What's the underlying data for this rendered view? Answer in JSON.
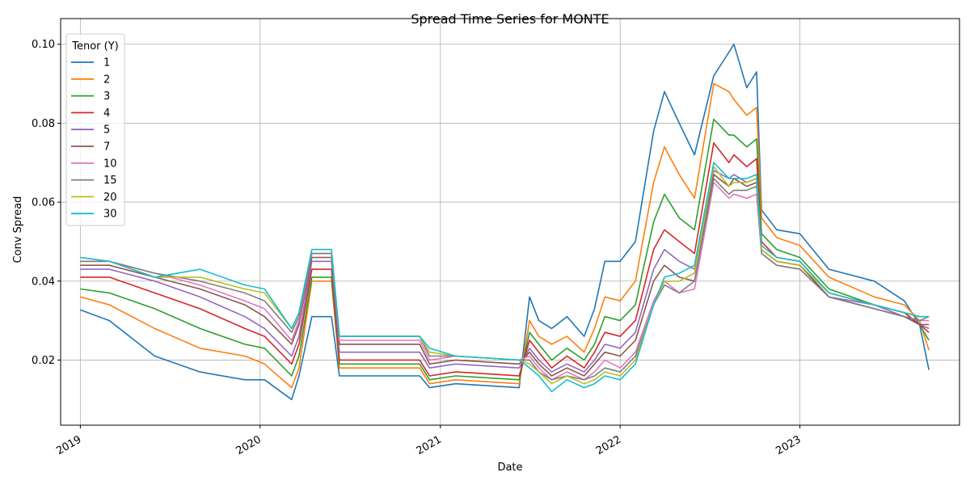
{
  "chart_data": {
    "type": "line",
    "title": "Spread Time Series for MONTE",
    "xlabel": "Date",
    "ylabel": "Conv Spread",
    "x_ticks": [
      "2019",
      "2020",
      "2021",
      "2022",
      "2023"
    ],
    "y_ticks": [
      "0.02",
      "0.04",
      "0.06",
      "0.08",
      "0.10"
    ],
    "xlim": [
      "2018-11-22",
      "2023-11-21"
    ],
    "ylim": [
      0.0035,
      0.1065
    ],
    "grid": true,
    "legend": {
      "title": "Tenor (Y)",
      "position": "top-left"
    },
    "series": [
      {
        "name": "1",
        "color": "#1f77b4",
        "x": [
          "2019-01-01",
          "2019-03-01",
          "2019-06-01",
          "2019-09-01",
          "2019-12-01",
          "2020-01-10",
          "2020-03-05",
          "2020-03-20",
          "2020-04-15",
          "2020-05-25",
          "2020-06-10",
          "2020-09-01",
          "2020-11-20",
          "2020-12-10",
          "2021-02-01",
          "2021-06-10",
          "2021-07-01",
          "2021-07-20",
          "2021-08-15",
          "2021-09-15",
          "2021-10-20",
          "2021-11-10",
          "2021-12-01",
          "2022-01-01",
          "2022-02-01",
          "2022-03-10",
          "2022-04-01",
          "2022-05-01",
          "2022-06-01",
          "2022-07-10",
          "2022-08-10",
          "2022-08-20",
          "2022-09-15",
          "2022-10-05",
          "2022-10-15",
          "2022-11-15",
          "2023-01-01",
          "2023-03-01",
          "2023-06-01",
          "2023-08-01",
          "2023-09-01",
          "2023-09-20"
        ],
        "y": [
          0.0327,
          0.03,
          0.021,
          0.017,
          0.015,
          0.015,
          0.01,
          0.016,
          0.031,
          0.031,
          0.016,
          0.016,
          0.016,
          0.013,
          0.014,
          0.013,
          0.036,
          0.03,
          0.028,
          0.031,
          0.026,
          0.033,
          0.045,
          0.045,
          0.05,
          0.078,
          0.088,
          0.08,
          0.072,
          0.092,
          0.098,
          0.1,
          0.089,
          0.093,
          0.058,
          0.053,
          0.052,
          0.043,
          0.04,
          0.035,
          0.029,
          0.0175
        ]
      },
      {
        "name": "2",
        "color": "#ff7f0e",
        "x": [
          "2019-01-01",
          "2019-03-01",
          "2019-06-01",
          "2019-09-01",
          "2019-12-01",
          "2020-01-10",
          "2020-03-05",
          "2020-03-20",
          "2020-04-15",
          "2020-05-25",
          "2020-06-10",
          "2020-09-01",
          "2020-11-20",
          "2020-12-10",
          "2021-02-01",
          "2021-06-10",
          "2021-07-01",
          "2021-07-20",
          "2021-08-15",
          "2021-09-15",
          "2021-10-20",
          "2021-11-10",
          "2021-12-01",
          "2022-01-01",
          "2022-02-01",
          "2022-03-10",
          "2022-04-01",
          "2022-05-01",
          "2022-06-01",
          "2022-07-10",
          "2022-08-10",
          "2022-08-20",
          "2022-09-15",
          "2022-10-05",
          "2022-10-15",
          "2022-11-15",
          "2023-01-01",
          "2023-03-01",
          "2023-06-01",
          "2023-08-01",
          "2023-09-01",
          "2023-09-20"
        ],
        "y": [
          0.036,
          0.034,
          0.028,
          0.023,
          0.021,
          0.019,
          0.013,
          0.018,
          0.04,
          0.04,
          0.018,
          0.018,
          0.018,
          0.014,
          0.015,
          0.014,
          0.03,
          0.026,
          0.024,
          0.026,
          0.022,
          0.028,
          0.036,
          0.035,
          0.04,
          0.065,
          0.074,
          0.067,
          0.061,
          0.09,
          0.088,
          0.086,
          0.082,
          0.084,
          0.056,
          0.051,
          0.049,
          0.041,
          0.036,
          0.034,
          0.03,
          0.0225
        ]
      },
      {
        "name": "3",
        "color": "#2ca02c",
        "x": [
          "2019-01-01",
          "2019-03-01",
          "2019-06-01",
          "2019-09-01",
          "2019-12-01",
          "2020-01-10",
          "2020-03-05",
          "2020-03-20",
          "2020-04-15",
          "2020-05-25",
          "2020-06-10",
          "2020-09-01",
          "2020-11-20",
          "2020-12-10",
          "2021-02-01",
          "2021-06-10",
          "2021-07-01",
          "2021-07-20",
          "2021-08-15",
          "2021-09-15",
          "2021-10-20",
          "2021-11-10",
          "2021-12-01",
          "2022-01-01",
          "2022-02-01",
          "2022-03-10",
          "2022-04-01",
          "2022-05-01",
          "2022-06-01",
          "2022-07-10",
          "2022-08-10",
          "2022-08-20",
          "2022-09-15",
          "2022-10-05",
          "2022-10-15",
          "2022-11-15",
          "2023-01-01",
          "2023-03-01",
          "2023-06-01",
          "2023-08-01",
          "2023-09-01",
          "2023-09-20"
        ],
        "y": [
          0.038,
          0.037,
          0.033,
          0.028,
          0.024,
          0.023,
          0.016,
          0.021,
          0.041,
          0.041,
          0.019,
          0.019,
          0.019,
          0.015,
          0.016,
          0.015,
          0.027,
          0.024,
          0.02,
          0.023,
          0.02,
          0.024,
          0.031,
          0.03,
          0.034,
          0.055,
          0.062,
          0.056,
          0.053,
          0.081,
          0.077,
          0.077,
          0.074,
          0.076,
          0.052,
          0.048,
          0.046,
          0.038,
          0.034,
          0.032,
          0.029,
          0.025
        ]
      },
      {
        "name": "4",
        "color": "#d62728",
        "x": [
          "2019-01-01",
          "2019-03-01",
          "2019-06-01",
          "2019-09-01",
          "2019-12-01",
          "2020-01-10",
          "2020-03-05",
          "2020-03-20",
          "2020-04-15",
          "2020-05-25",
          "2020-06-10",
          "2020-09-01",
          "2020-11-20",
          "2020-12-10",
          "2021-02-01",
          "2021-06-10",
          "2021-07-01",
          "2021-07-20",
          "2021-08-15",
          "2021-09-15",
          "2021-10-20",
          "2021-11-10",
          "2021-12-01",
          "2022-01-01",
          "2022-02-01",
          "2022-03-10",
          "2022-04-01",
          "2022-05-01",
          "2022-06-01",
          "2022-07-10",
          "2022-08-10",
          "2022-08-20",
          "2022-09-15",
          "2022-10-05",
          "2022-10-15",
          "2022-11-15",
          "2023-01-01",
          "2023-03-01",
          "2023-06-01",
          "2023-08-01",
          "2023-09-01",
          "2023-09-20"
        ],
        "y": [
          0.041,
          0.041,
          0.037,
          0.033,
          0.028,
          0.026,
          0.019,
          0.024,
          0.043,
          0.043,
          0.02,
          0.02,
          0.02,
          0.016,
          0.017,
          0.016,
          0.025,
          0.022,
          0.018,
          0.021,
          0.018,
          0.022,
          0.027,
          0.026,
          0.03,
          0.048,
          0.053,
          0.05,
          0.047,
          0.075,
          0.07,
          0.072,
          0.069,
          0.071,
          0.05,
          0.046,
          0.045,
          0.037,
          0.034,
          0.032,
          0.029,
          0.027
        ]
      },
      {
        "name": "5",
        "color": "#9467bd",
        "x": [
          "2019-01-01",
          "2019-03-01",
          "2019-06-01",
          "2019-09-01",
          "2019-12-01",
          "2020-01-10",
          "2020-03-05",
          "2020-03-20",
          "2020-04-15",
          "2020-05-25",
          "2020-06-10",
          "2020-09-01",
          "2020-11-20",
          "2020-12-10",
          "2021-02-01",
          "2021-06-10",
          "2021-07-01",
          "2021-07-20",
          "2021-08-15",
          "2021-09-15",
          "2021-10-20",
          "2021-11-10",
          "2021-12-01",
          "2022-01-01",
          "2022-02-01",
          "2022-03-10",
          "2022-04-01",
          "2022-05-01",
          "2022-06-01",
          "2022-07-10",
          "2022-08-10",
          "2022-08-20",
          "2022-09-15",
          "2022-10-05",
          "2022-10-15",
          "2022-11-15",
          "2023-01-01",
          "2023-03-01",
          "2023-06-01",
          "2023-08-01",
          "2023-09-01",
          "2023-09-20"
        ],
        "y": [
          0.043,
          0.043,
          0.04,
          0.036,
          0.031,
          0.028,
          0.021,
          0.026,
          0.045,
          0.045,
          0.022,
          0.022,
          0.022,
          0.018,
          0.019,
          0.018,
          0.023,
          0.02,
          0.017,
          0.019,
          0.017,
          0.02,
          0.024,
          0.023,
          0.027,
          0.043,
          0.048,
          0.045,
          0.043,
          0.068,
          0.066,
          0.067,
          0.065,
          0.066,
          0.048,
          0.045,
          0.044,
          0.036,
          0.034,
          0.031,
          0.029,
          0.028
        ]
      },
      {
        "name": "7",
        "color": "#8c564b",
        "x": [
          "2019-01-01",
          "2019-03-01",
          "2019-06-01",
          "2019-09-01",
          "2019-12-01",
          "2020-01-10",
          "2020-03-05",
          "2020-03-20",
          "2020-04-15",
          "2020-05-25",
          "2020-06-10",
          "2020-09-01",
          "2020-11-20",
          "2020-12-10",
          "2021-02-01",
          "2021-06-10",
          "2021-07-01",
          "2021-07-20",
          "2021-08-15",
          "2021-09-15",
          "2021-10-20",
          "2021-11-10",
          "2021-12-01",
          "2022-01-01",
          "2022-02-01",
          "2022-03-10",
          "2022-04-01",
          "2022-05-01",
          "2022-06-01",
          "2022-07-10",
          "2022-08-10",
          "2022-08-20",
          "2022-09-15",
          "2022-10-05",
          "2022-10-15",
          "2022-11-15",
          "2023-01-01",
          "2023-03-01",
          "2023-06-01",
          "2023-08-01",
          "2023-09-01",
          "2023-09-20"
        ],
        "y": [
          0.044,
          0.044,
          0.041,
          0.038,
          0.034,
          0.031,
          0.024,
          0.029,
          0.046,
          0.046,
          0.024,
          0.024,
          0.024,
          0.019,
          0.02,
          0.019,
          0.022,
          0.019,
          0.016,
          0.018,
          0.016,
          0.019,
          0.022,
          0.021,
          0.025,
          0.04,
          0.044,
          0.041,
          0.04,
          0.067,
          0.064,
          0.066,
          0.064,
          0.065,
          0.048,
          0.045,
          0.044,
          0.036,
          0.033,
          0.031,
          0.029,
          0.029
        ]
      },
      {
        "name": "10",
        "color": "#e377c2",
        "x": [
          "2019-01-01",
          "2019-03-01",
          "2019-06-01",
          "2019-09-01",
          "2019-12-01",
          "2020-01-10",
          "2020-03-05",
          "2020-03-20",
          "2020-04-15",
          "2020-05-25",
          "2020-06-10",
          "2020-09-01",
          "2020-11-20",
          "2020-12-10",
          "2021-02-01",
          "2021-06-10",
          "2021-07-01",
          "2021-07-20",
          "2021-08-15",
          "2021-09-15",
          "2021-10-20",
          "2021-11-10",
          "2021-12-01",
          "2022-01-01",
          "2022-02-01",
          "2022-03-10",
          "2022-04-01",
          "2022-05-01",
          "2022-06-01",
          "2022-07-10",
          "2022-08-10",
          "2022-08-20",
          "2022-09-15",
          "2022-10-05",
          "2022-10-15",
          "2022-11-15",
          "2023-01-01",
          "2023-03-01",
          "2023-06-01",
          "2023-08-01",
          "2023-09-01",
          "2023-09-20"
        ],
        "y": [
          0.045,
          0.045,
          0.042,
          0.039,
          0.035,
          0.033,
          0.025,
          0.03,
          0.047,
          0.047,
          0.025,
          0.025,
          0.025,
          0.02,
          0.021,
          0.02,
          0.021,
          0.018,
          0.015,
          0.017,
          0.015,
          0.017,
          0.02,
          0.018,
          0.022,
          0.035,
          0.04,
          0.037,
          0.038,
          0.065,
          0.061,
          0.062,
          0.061,
          0.062,
          0.047,
          0.044,
          0.043,
          0.036,
          0.033,
          0.031,
          0.03,
          0.03
        ]
      },
      {
        "name": "15",
        "color": "#7f7f7f",
        "x": [
          "2019-01-01",
          "2019-03-01",
          "2019-06-01",
          "2019-09-01",
          "2019-12-01",
          "2020-01-10",
          "2020-03-05",
          "2020-03-20",
          "2020-04-15",
          "2020-05-25",
          "2020-06-10",
          "2020-09-01",
          "2020-11-20",
          "2020-12-10",
          "2021-02-01",
          "2021-06-10",
          "2021-07-01",
          "2021-07-20",
          "2021-08-15",
          "2021-09-15",
          "2021-10-20",
          "2021-11-10",
          "2021-12-01",
          "2022-01-01",
          "2022-02-01",
          "2022-03-10",
          "2022-04-01",
          "2022-05-01",
          "2022-06-01",
          "2022-07-10",
          "2022-08-10",
          "2022-08-20",
          "2022-09-15",
          "2022-10-05",
          "2022-10-15",
          "2022-11-15",
          "2023-01-01",
          "2023-03-01",
          "2023-06-01",
          "2023-08-01",
          "2023-09-01",
          "2023-09-20"
        ],
        "y": [
          0.045,
          0.045,
          0.042,
          0.04,
          0.037,
          0.035,
          0.027,
          0.031,
          0.047,
          0.047,
          0.026,
          0.026,
          0.026,
          0.021,
          0.021,
          0.02,
          0.02,
          0.017,
          0.015,
          0.016,
          0.015,
          0.016,
          0.018,
          0.017,
          0.021,
          0.034,
          0.039,
          0.037,
          0.04,
          0.066,
          0.062,
          0.063,
          0.063,
          0.064,
          0.047,
          0.044,
          0.043,
          0.036,
          0.033,
          0.031,
          0.03,
          0.031
        ]
      },
      {
        "name": "20",
        "color": "#bcbd22",
        "x": [
          "2019-01-01",
          "2019-03-01",
          "2019-06-01",
          "2019-09-01",
          "2019-12-01",
          "2020-01-10",
          "2020-03-05",
          "2020-03-20",
          "2020-04-15",
          "2020-05-25",
          "2020-06-10",
          "2020-09-01",
          "2020-11-20",
          "2020-12-10",
          "2021-02-01",
          "2021-06-10",
          "2021-07-01",
          "2021-07-20",
          "2021-08-15",
          "2021-09-15",
          "2021-10-20",
          "2021-11-10",
          "2021-12-01",
          "2022-01-01",
          "2022-02-01",
          "2022-03-10",
          "2022-04-01",
          "2022-05-01",
          "2022-06-01",
          "2022-07-10",
          "2022-08-10",
          "2022-08-20",
          "2022-09-15",
          "2022-10-05",
          "2022-10-15",
          "2022-11-15",
          "2023-01-01",
          "2023-03-01",
          "2023-06-01",
          "2023-08-01",
          "2023-09-01",
          "2023-09-20"
        ],
        "y": [
          0.046,
          0.045,
          0.041,
          0.041,
          0.038,
          0.037,
          0.028,
          0.032,
          0.048,
          0.048,
          0.026,
          0.026,
          0.026,
          0.022,
          0.021,
          0.02,
          0.019,
          0.017,
          0.014,
          0.016,
          0.014,
          0.015,
          0.017,
          0.016,
          0.02,
          0.034,
          0.04,
          0.04,
          0.042,
          0.069,
          0.064,
          0.065,
          0.065,
          0.066,
          0.048,
          0.045,
          0.044,
          0.037,
          0.034,
          0.032,
          0.031,
          0.031
        ]
      },
      {
        "name": "30",
        "color": "#17becf",
        "x": [
          "2019-01-01",
          "2019-03-01",
          "2019-06-01",
          "2019-09-01",
          "2019-12-01",
          "2020-01-10",
          "2020-03-05",
          "2020-03-20",
          "2020-04-15",
          "2020-05-25",
          "2020-06-10",
          "2020-09-01",
          "2020-11-20",
          "2020-12-10",
          "2021-02-01",
          "2021-06-10",
          "2021-07-01",
          "2021-07-20",
          "2021-08-15",
          "2021-09-15",
          "2021-10-20",
          "2021-11-10",
          "2021-12-01",
          "2022-01-01",
          "2022-02-01",
          "2022-03-10",
          "2022-04-01",
          "2022-05-01",
          "2022-06-01",
          "2022-07-10",
          "2022-08-10",
          "2022-08-20",
          "2022-09-15",
          "2022-10-05",
          "2022-10-15",
          "2022-11-15",
          "2023-01-01",
          "2023-03-01",
          "2023-06-01",
          "2023-08-01",
          "2023-09-01",
          "2023-09-20"
        ],
        "y": [
          0.046,
          0.045,
          0.041,
          0.043,
          0.039,
          0.038,
          0.028,
          0.032,
          0.048,
          0.048,
          0.026,
          0.026,
          0.026,
          0.023,
          0.021,
          0.02,
          0.018,
          0.016,
          0.012,
          0.015,
          0.013,
          0.014,
          0.016,
          0.015,
          0.019,
          0.034,
          0.041,
          0.042,
          0.044,
          0.07,
          0.066,
          0.066,
          0.066,
          0.067,
          0.049,
          0.046,
          0.045,
          0.037,
          0.034,
          0.032,
          0.031,
          0.031
        ]
      }
    ]
  }
}
